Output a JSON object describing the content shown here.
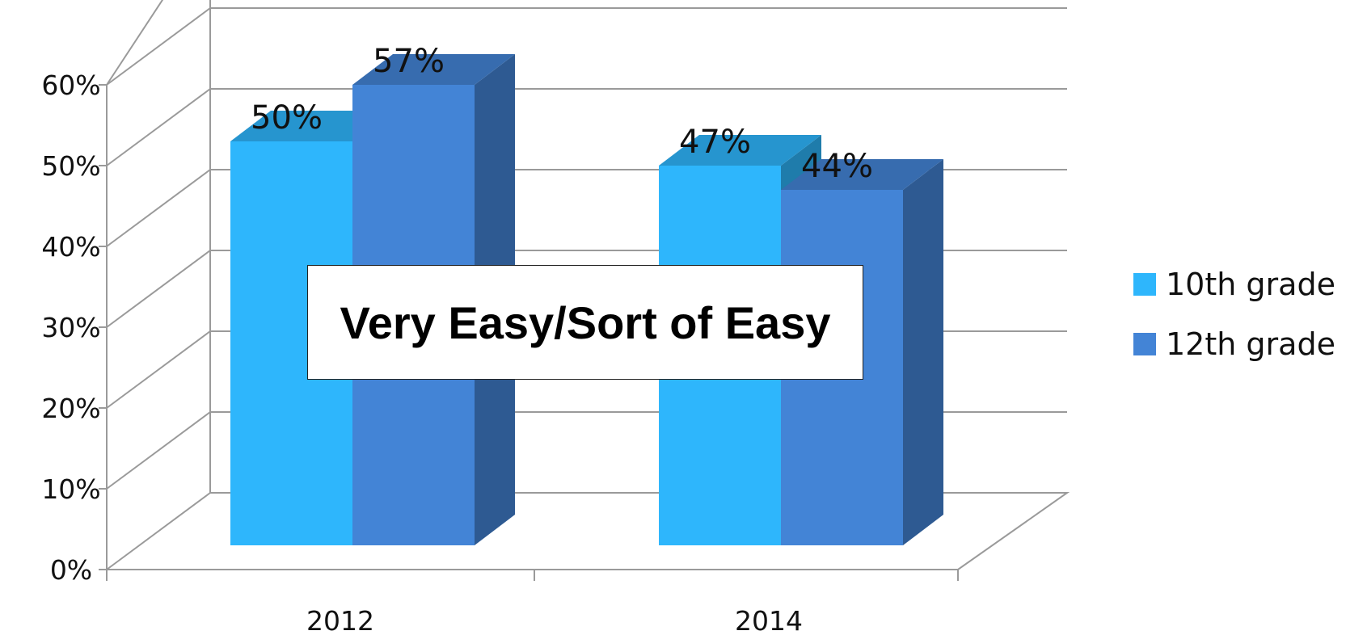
{
  "chart_data": {
    "type": "bar",
    "title": "Very Easy/Sort of Easy",
    "categories": [
      "2012",
      "2014"
    ],
    "series": [
      {
        "name": "10th grade",
        "values": [
          50,
          47
        ],
        "labels": [
          "50%",
          "47%"
        ],
        "color": "#2eb6fc"
      },
      {
        "name": "12th grade",
        "values": [
          57,
          44
        ],
        "labels": [
          "57%",
          "44%"
        ],
        "color": "#4384d6"
      }
    ],
    "ylim": [
      0,
      60
    ],
    "yticks": [
      "0%",
      "10%",
      "20%",
      "30%",
      "40%",
      "50%",
      "60%"
    ],
    "grid": true,
    "legend_position": "right",
    "style": "3d-clustered-column"
  }
}
